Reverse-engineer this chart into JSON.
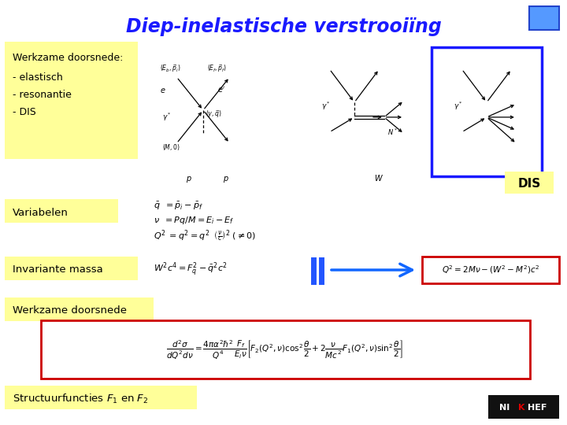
{
  "title": "Diep-inelastische verstrooiïng",
  "title_color": "#1a1aff",
  "bg_color": "#ffffff",
  "yellow_bg": "#ffff99",
  "blue_box_color": "#1a1aff",
  "red_box_color": "#cc0000",
  "section1_label": "Werkzame doorsnede:",
  "section1_items": [
    "- elastisch",
    "- resonantie",
    "- DIS"
  ],
  "section2_label": "Variabelen",
  "section3_label": "Invariante massa",
  "section4_label": "Werkzame doorsnede",
  "section5_label": "Structuurfuncties $F_1$ en $F_2$",
  "dis_label": "DIS",
  "nikhef_color_white": "#ffffff",
  "nikhef_color_red": "#dd0000",
  "nikhef_bg": "#111111"
}
